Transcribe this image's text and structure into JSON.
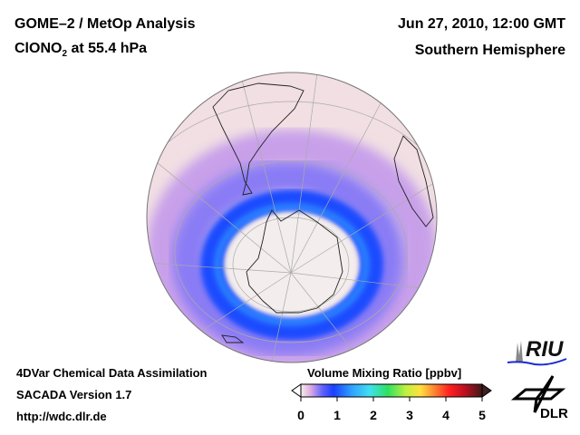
{
  "header": {
    "title_line1": "GOME–2 / MetOp Analysis",
    "species_prefix": "ClONO",
    "species_sub": "2",
    "species_suffix": " at 55.4 hPa",
    "datetime": "Jun 27, 2010, 12:00 GMT",
    "region": "Southern Hemisphere"
  },
  "footer": {
    "line1": "4DVar Chemical Data Assimilation",
    "line2": "SACADA Version 1.7",
    "line3": "http://wdc.dlr.de"
  },
  "colorbar": {
    "title": "Volume Mixing Ratio [ppbv]",
    "ticks": [
      "0",
      "1",
      "2",
      "3",
      "4",
      "5"
    ],
    "range": [
      0,
      5
    ]
  },
  "logos": {
    "riu": "RIU",
    "dlr": "DLR"
  },
  "colors": {
    "ocean_bg": "#f1dfe3",
    "vortex_core": "#f3eded",
    "ring": "#1e4cff",
    "ring_light": "#8a7cf5"
  }
}
